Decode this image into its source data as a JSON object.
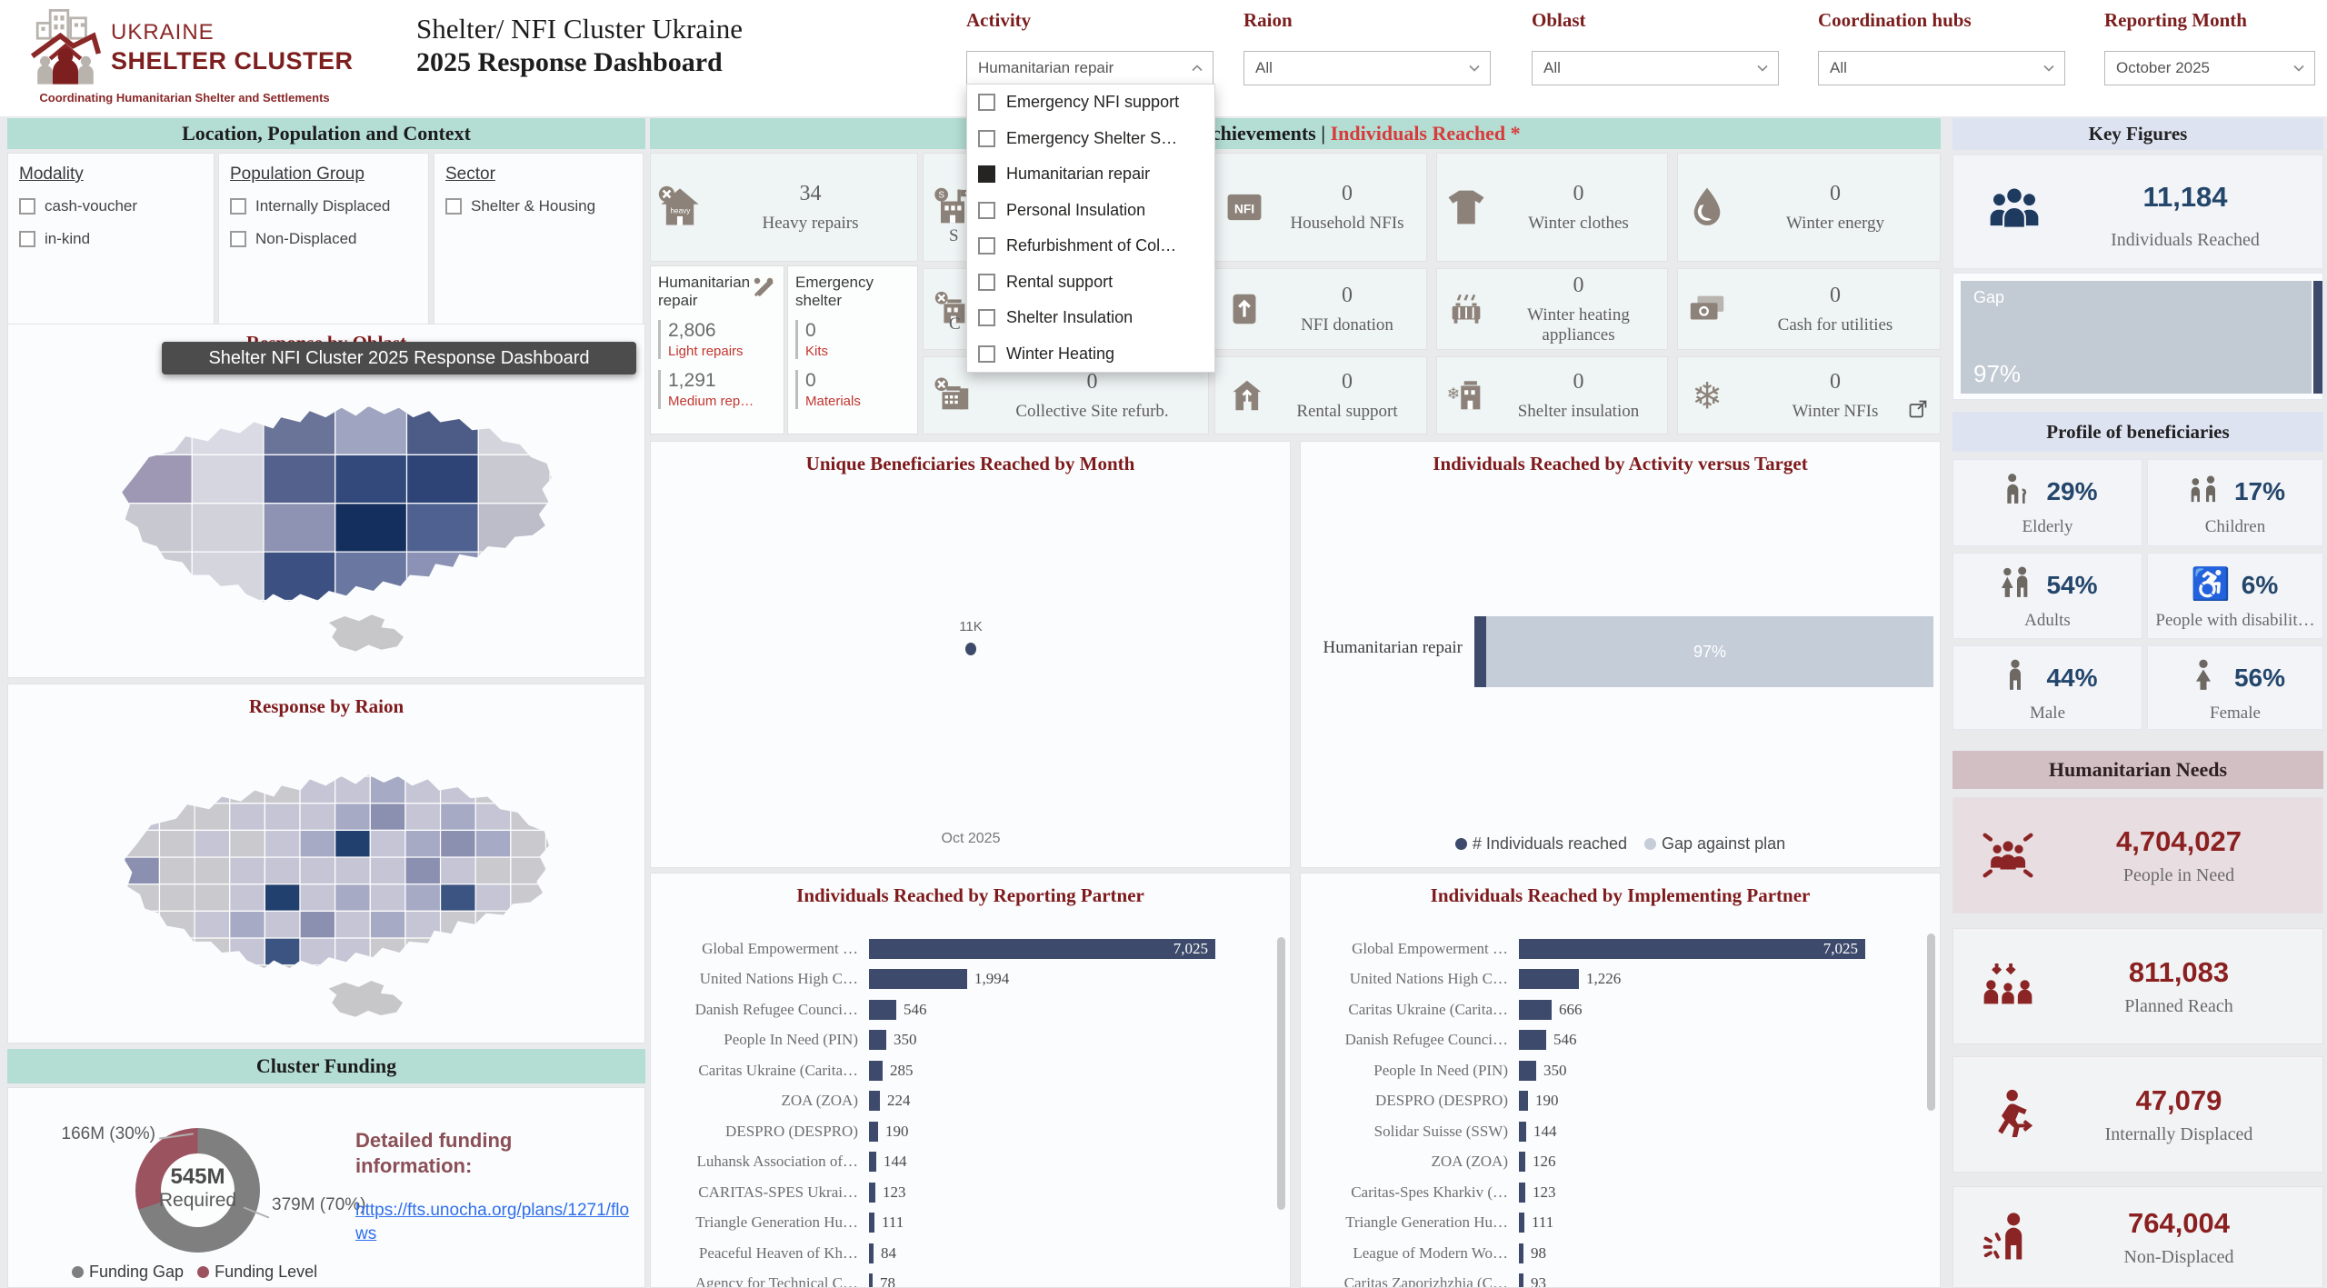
{
  "theme": {
    "teal": "#b4ded4",
    "periwinkle": "#dee3f2",
    "mauve": "#d2bfc4",
    "navy": "#3e4a6b",
    "navy_text": "#24466b",
    "maroon": "#7e1a1c",
    "red_accent": "#d83b3b",
    "dark_red": "#8b2020",
    "icon_taupe": "#8c8279",
    "gap_light": "#c5cdd9",
    "funding_gray": "#7f7f7f",
    "funding_maroon": "#9c5360"
  },
  "header": {
    "logo": {
      "line1": "UKRAINE",
      "line2": "SHELTER CLUSTER",
      "tagline": "Coordinating Humanitarian Shelter and Settlements"
    },
    "title_line1": "Shelter/ NFI Cluster Ukraine",
    "title_line2": "2025 Response Dashboard",
    "filters": [
      {
        "label": "Activity",
        "value": "Humanitarian repair",
        "expanded": true
      },
      {
        "label": "Raion",
        "value": "All",
        "expanded": false
      },
      {
        "label": "Oblast",
        "value": "All",
        "expanded": false
      },
      {
        "label": "Coordination hubs",
        "value": "All",
        "expanded": false
      },
      {
        "label": "Reporting Month",
        "value": "October 2025",
        "expanded": false
      }
    ],
    "activity_dropdown": {
      "items": [
        {
          "label": "Emergency NFI support",
          "checked": false
        },
        {
          "label": "Emergency Shelter S…",
          "checked": false
        },
        {
          "label": "Humanitarian repair",
          "checked": true
        },
        {
          "label": "Personal Insulation",
          "checked": false
        },
        {
          "label": "Refurbishment of Col…",
          "checked": false
        },
        {
          "label": "Rental support",
          "checked": false
        },
        {
          "label": "Shelter Insulation",
          "checked": false
        },
        {
          "label": "Winter Heating",
          "checked": false
        }
      ]
    }
  },
  "left": {
    "section_title": "Location, Population and Context",
    "filter_groups": [
      {
        "title": "Modality",
        "options": [
          "cash-voucher",
          "in-kind"
        ]
      },
      {
        "title": "Population Group",
        "options": [
          "Internally Displaced",
          "Non-Displaced"
        ]
      },
      {
        "title": "Sector",
        "options": [
          "Shelter & Housing"
        ]
      }
    ],
    "oblast_map_title": "Response by Oblast",
    "raion_map_title": "Response by Raion",
    "tooltip": "Shelter NFI Cluster 2025 Response Dashboard",
    "funding": {
      "section_title": "Cluster Funding",
      "center_value": "545M",
      "center_label": "Required",
      "level_label": "166M (30%)",
      "gap_label": "379M (70%)",
      "legend": [
        {
          "name": "Funding Gap",
          "color": "#7f7f7f"
        },
        {
          "name": "Funding Level",
          "color": "#9c5360"
        }
      ],
      "info_title": "Detailed funding information:",
      "link": "https://fts.unocha.org/plans/1271/flows"
    }
  },
  "achievements": {
    "section_title_black": "Achievements |",
    "section_title_red": " Individuals Reached *",
    "tiles": [
      {
        "icon": "house-heavy",
        "value": "34",
        "label": "Heavy repairs"
      },
      {
        "icon": "building-s",
        "value": "",
        "label": "",
        "fragment": "S"
      },
      {
        "icon": "nfi-box",
        "value": "0",
        "label": "Household NFIs"
      },
      {
        "icon": "shirt",
        "value": "0",
        "label": "Winter clothes"
      },
      {
        "icon": "drop",
        "value": "0",
        "label": "Winter energy"
      },
      {
        "icon": "building-wrench",
        "value": "",
        "label": "",
        "fragment": "C"
      },
      {
        "icon": "box-arrow",
        "value": "0",
        "label": "NFI donation"
      },
      {
        "icon": "radiator",
        "value": "0",
        "label": "Winter heating appliances"
      },
      {
        "icon": "cash",
        "value": "0",
        "label": "Cash for utilities"
      },
      {
        "icon": "building-grid",
        "value": "0",
        "label": "Collective Site refurb."
      },
      {
        "icon": "house-person",
        "value": "0",
        "label": "Rental support"
      },
      {
        "icon": "building-snow",
        "value": "0",
        "label": "Shelter insulation"
      },
      {
        "icon": "snowflake",
        "value": "0",
        "label": "Winter NFIs"
      }
    ],
    "subcards": [
      {
        "title": "Humanitarian repair",
        "rows": [
          {
            "value": "2,806",
            "label": "Light repairs"
          },
          {
            "value": "1,291",
            "label": "Medium rep…"
          }
        ]
      },
      {
        "title": "Emergency shelter",
        "rows": [
          {
            "value": "0",
            "label": "Kits"
          },
          {
            "value": "0",
            "label": "Materials"
          }
        ]
      }
    ]
  },
  "charts": {
    "monthly": {
      "type": "scatter",
      "title": "Unique Beneficiaries Reached by Month",
      "x": [
        "Oct 2025"
      ],
      "values": [
        11184
      ],
      "point_label": "11K"
    },
    "activity_target": {
      "type": "stacked-bar-h",
      "title": "Individuals Reached by Activity versus Target",
      "category": "Humanitarian repair",
      "reached_pct": 3,
      "gap_pct": 97,
      "gap_label": "97%",
      "legend": [
        {
          "name": "# Individuals reached",
          "color": "#3e4a6b"
        },
        {
          "name": "Gap against plan",
          "color": "#c5cdd9"
        }
      ]
    },
    "reporting_partner": {
      "type": "bar-h",
      "title": "Individuals Reached by Reporting Partner",
      "categories": [
        "Global Empowerment …",
        "United Nations High C…",
        "Danish Refugee Counci…",
        "People In Need (PIN)",
        "Caritas Ukraine (Carita…",
        "ZOA (ZOA)",
        "DESPRO (DESPRO)",
        "Luhansk Association of…",
        "CARITAS-SPES Ukrai…",
        "Triangle Generation Hu…",
        "Peaceful Heaven of Kh…",
        "Agency for Technical C…"
      ],
      "values": [
        7025,
        1994,
        546,
        350,
        285,
        224,
        190,
        144,
        123,
        111,
        84,
        78
      ]
    },
    "implementing_partner": {
      "type": "bar-h",
      "title": "Individuals Reached by Implementing Partner",
      "categories": [
        "Global Empowerment …",
        "United Nations High C…",
        "Caritas Ukraine (Carita…",
        "Danish Refugee Counci…",
        "People In Need (PIN)",
        "DESPRO (DESPRO)",
        "Solidar Suisse (SSW)",
        "ZOA (ZOA)",
        "Caritas-Spes Kharkiv (…",
        "Triangle Generation Hu…",
        "League of Modern Wo…",
        "Caritas Zaporizhzhia (C…"
      ],
      "values": [
        7025,
        1226,
        666,
        546,
        350,
        190,
        144,
        126,
        123,
        111,
        98,
        93
      ]
    }
  },
  "key_figures": {
    "header": "Key Figures",
    "value": "11,184",
    "label": "Individuals Reached",
    "gap": {
      "label": "Gap",
      "pct": "97%"
    }
  },
  "profile": {
    "header": "Profile of beneficiaries",
    "stats": [
      {
        "pct": "29%",
        "label": "Elderly",
        "icon": "elderly"
      },
      {
        "pct": "17%",
        "label": "Children",
        "icon": "children"
      },
      {
        "pct": "54%",
        "label": "Adults",
        "icon": "adults"
      },
      {
        "pct": "6%",
        "label": "People with disabilit…",
        "icon": "wheelchair"
      },
      {
        "pct": "44%",
        "label": "Male",
        "icon": "male"
      },
      {
        "pct": "56%",
        "label": "Female",
        "icon": "female"
      }
    ]
  },
  "needs": {
    "header": "Humanitarian Needs",
    "items": [
      {
        "value": "4,704,027",
        "label": "People in Need",
        "icon": "group-dashes",
        "highlight": true
      },
      {
        "value": "811,083",
        "label": "Planned Reach",
        "icon": "reach",
        "highlight": false
      },
      {
        "value": "47,079",
        "label": "Internally Displaced",
        "icon": "runner",
        "highlight": false
      },
      {
        "value": "764,004",
        "label": "Non-Displaced",
        "icon": "person-burst",
        "highlight": false
      }
    ]
  }
}
